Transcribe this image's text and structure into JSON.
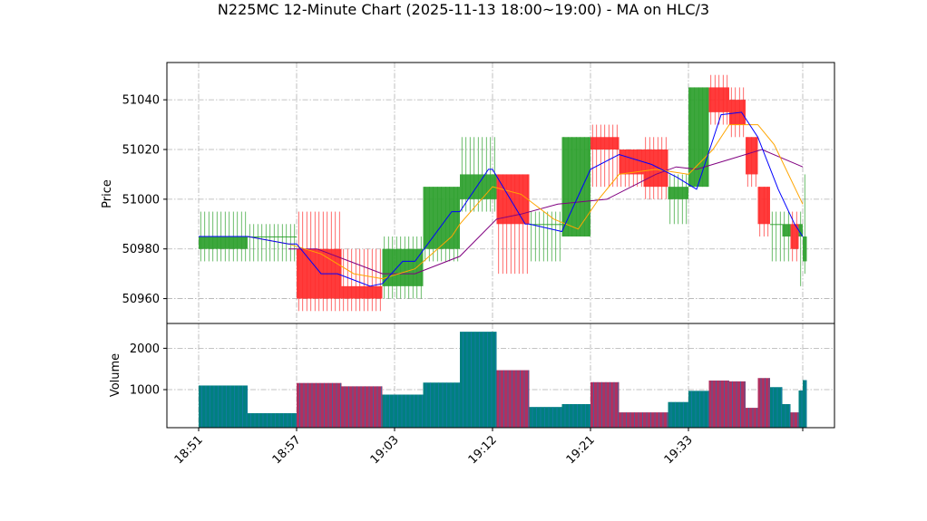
{
  "chart_data": {
    "type": "candlestick",
    "title": "N225MC 12-Minute Chart (2025-11-13 18:00~19:00) - MA on HLC/3",
    "time_labels": [
      "18:51",
      "18:57",
      "19:03",
      "19:12",
      "19:21",
      "19:33"
    ],
    "price_panel": {
      "ylabel": "Price",
      "ylim": [
        50950,
        51055
      ],
      "yticks": [
        50960,
        50980,
        51000,
        51020,
        51040
      ]
    },
    "volume_panel": {
      "ylabel": "Volume",
      "ylim": [
        80,
        2600
      ],
      "yticks": [
        1000,
        2000
      ]
    },
    "grid": true,
    "colors": {
      "up": "#2ca02c",
      "down": "#ff2a2a",
      "ma_fast": "#0000ff",
      "ma_mid": "#ffa500",
      "ma_slow": "#800080",
      "vol_up": "#008080",
      "vol_down": "#b03060",
      "vol_stripe_up": "#1f77b4",
      "vol_stripe_down": "#1f77b4"
    },
    "candles": [
      {
        "t": 0,
        "span": 12,
        "open": 50980,
        "high": 50995,
        "low": 50975,
        "close": 50985,
        "volume": 1100
      },
      {
        "t": 12,
        "span": 12,
        "open": 50985,
        "high": 50990,
        "low": 50975,
        "close": 50985,
        "volume": 430
      },
      {
        "t": 24,
        "span": 11,
        "open": 50980,
        "high": 50995,
        "low": 50955,
        "close": 50960,
        "volume": 1160
      },
      {
        "t": 35,
        "span": 10,
        "open": 50965,
        "high": 50980,
        "low": 50955,
        "close": 50960,
        "volume": 1080
      },
      {
        "t": 45,
        "span": 10,
        "open": 50965,
        "high": 50985,
        "low": 50960,
        "close": 50980,
        "volume": 880
      },
      {
        "t": 55,
        "span": 9,
        "open": 50980,
        "high": 51005,
        "low": 50975,
        "close": 51005,
        "volume": 1170
      },
      {
        "t": 64,
        "span": 9,
        "open": 51000,
        "high": 51025,
        "low": 50995,
        "close": 51010,
        "volume": 2400
      },
      {
        "t": 73,
        "span": 8,
        "open": 51010,
        "high": 51010,
        "low": 50970,
        "close": 50990,
        "volume": 1470
      },
      {
        "t": 81,
        "span": 8,
        "open": 50990,
        "high": 50995,
        "low": 50975,
        "close": 50990,
        "volume": 580
      },
      {
        "t": 89,
        "span": 7,
        "open": 50985,
        "high": 51025,
        "low": 50985,
        "close": 51025,
        "volume": 650
      },
      {
        "t": 96,
        "span": 7,
        "open": 51025,
        "high": 51030,
        "low": 51005,
        "close": 51020,
        "volume": 1180
      },
      {
        "t": 103,
        "span": 6,
        "open": 51020,
        "high": 51020,
        "low": 51005,
        "close": 51010,
        "volume": 450
      },
      {
        "t": 109,
        "span": 6,
        "open": 51020,
        "high": 51025,
        "low": 51000,
        "close": 51005,
        "volume": 450
      },
      {
        "t": 115,
        "span": 5,
        "open": 51000,
        "high": 51010,
        "low": 50990,
        "close": 51005,
        "volume": 700
      },
      {
        "t": 120,
        "span": 5,
        "open": 51005,
        "high": 51045,
        "low": 51005,
        "close": 51045,
        "volume": 970
      },
      {
        "t": 125,
        "span": 5,
        "open": 51045,
        "high": 51050,
        "low": 51030,
        "close": 51035,
        "volume": 1220
      },
      {
        "t": 130,
        "span": 4,
        "open": 51040,
        "high": 51045,
        "low": 51025,
        "close": 51030,
        "volume": 1200
      },
      {
        "t": 134,
        "span": 3,
        "open": 51025,
        "high": 51025,
        "low": 51005,
        "close": 51010,
        "volume": 560
      },
      {
        "t": 137,
        "span": 3,
        "open": 51005,
        "high": 51005,
        "low": 50985,
        "close": 50990,
        "volume": 1280
      },
      {
        "t": 140,
        "span": 3,
        "open": 50990,
        "high": 50995,
        "low": 50975,
        "close": 50990,
        "volume": 1060
      },
      {
        "t": 143,
        "span": 2,
        "open": 50985,
        "high": 50995,
        "low": 50975,
        "close": 50990,
        "volume": 650
      },
      {
        "t": 145,
        "span": 2,
        "open": 50990,
        "high": 50995,
        "low": 50975,
        "close": 50980,
        "volume": 450
      },
      {
        "t": 147,
        "span": 1,
        "open": 50985,
        "high": 50995,
        "low": 50965,
        "close": 50990,
        "volume": 980
      },
      {
        "t": 148,
        "span": 1,
        "open": 50975,
        "high": 51010,
        "low": 50970,
        "close": 50985,
        "volume": 1230
      }
    ],
    "ma_fast": [
      [
        0,
        50985
      ],
      [
        12,
        50985
      ],
      [
        22,
        50982
      ],
      [
        24,
        50982
      ],
      [
        30,
        50970
      ],
      [
        34,
        50970
      ],
      [
        42,
        50965
      ],
      [
        45,
        50966
      ],
      [
        50,
        50975
      ],
      [
        53,
        50975
      ],
      [
        62,
        50995
      ],
      [
        64,
        50995
      ],
      [
        71,
        51012
      ],
      [
        72,
        51012
      ],
      [
        80,
        50990
      ],
      [
        81,
        50990
      ],
      [
        89,
        50987
      ],
      [
        96,
        51012
      ],
      [
        103,
        51018
      ],
      [
        111,
        51014
      ],
      [
        117,
        51009
      ],
      [
        122,
        51004
      ],
      [
        128,
        51034
      ],
      [
        133,
        51035
      ],
      [
        137,
        51025
      ],
      [
        142,
        51004
      ],
      [
        146,
        50990
      ],
      [
        148,
        50985
      ]
    ],
    "ma_mid": [
      [
        12,
        50985
      ],
      [
        22,
        50982
      ],
      [
        30,
        50978
      ],
      [
        38,
        50970
      ],
      [
        45,
        50968
      ],
      [
        53,
        50972
      ],
      [
        62,
        50985
      ],
      [
        64,
        50990
      ],
      [
        72,
        51005
      ],
      [
        79,
        51002
      ],
      [
        87,
        50992
      ],
      [
        93,
        50988
      ],
      [
        98,
        51000
      ],
      [
        103,
        51010
      ],
      [
        112,
        51012
      ],
      [
        120,
        51010
      ],
      [
        126,
        51020
      ],
      [
        130,
        51030
      ],
      [
        137,
        51030
      ],
      [
        141,
        51022
      ],
      [
        148,
        50998
      ]
    ],
    "ma_slow": [
      [
        22,
        50980
      ],
      [
        29,
        50980
      ],
      [
        37,
        50975
      ],
      [
        45,
        50970
      ],
      [
        53,
        50970
      ],
      [
        64,
        50977
      ],
      [
        73,
        50992
      ],
      [
        79,
        50994
      ],
      [
        88,
        50998
      ],
      [
        100,
        51000
      ],
      [
        112,
        51010
      ],
      [
        117,
        51013
      ],
      [
        122,
        51012
      ],
      [
        130,
        51016
      ],
      [
        138,
        51020
      ],
      [
        148,
        51013
      ]
    ]
  }
}
